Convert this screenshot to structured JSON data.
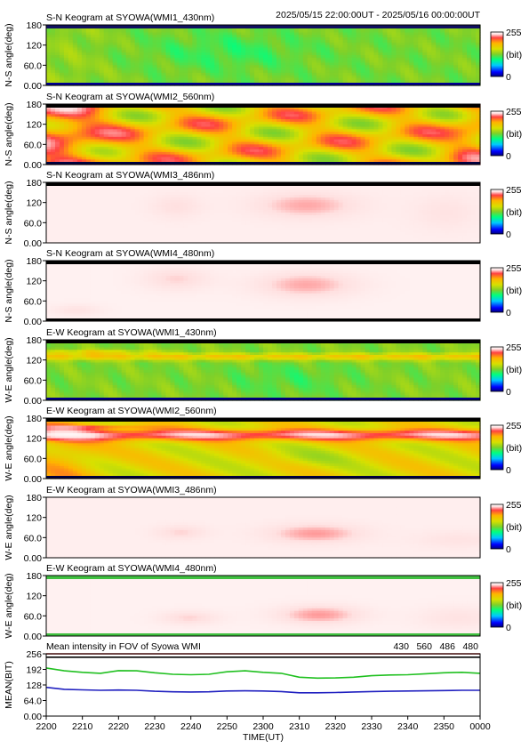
{
  "header": {
    "range": "2025/05/15 22:00:00UT - 2025/05/16 00:00:00UT"
  },
  "chart_data": {
    "type": "heatmap",
    "panels": [
      {
        "title": "S-N Keogram at SYOWA(WMI1_430nm)",
        "ylabel": "N-S angle(deg)",
        "yticks": [
          "180",
          "120",
          "60.0",
          "0.00"
        ],
        "ylim": [
          0,
          180
        ],
        "colorbar": {
          "max": "255",
          "unit": "(bit)",
          "min": "0"
        },
        "preset": "sn430"
      },
      {
        "title": "S-N Keogram at SYOWA(WMI2_560nm)",
        "ylabel": "N-S angle(deg)",
        "yticks": [
          "180",
          "120",
          "60.0",
          "0.00"
        ],
        "ylim": [
          0,
          180
        ],
        "colorbar": {
          "max": "255",
          "unit": "(bit)",
          "min": "0"
        },
        "preset": "sn560"
      },
      {
        "title": "S-N Keogram at SYOWA(WMI3_486nm)",
        "ylabel": "N-S angle(deg)",
        "yticks": [
          "180",
          "120",
          "60.0",
          "0.00"
        ],
        "ylim": [
          0,
          180
        ],
        "colorbar": {
          "max": "255",
          "unit": "(bit)",
          "min": "0"
        },
        "preset": "sn486"
      },
      {
        "title": "S-N Keogram at SYOWA(WMI4_480nm)",
        "ylabel": "N-S angle(deg)",
        "yticks": [
          "180",
          "120",
          "60.0",
          "0.00"
        ],
        "ylim": [
          0,
          180
        ],
        "colorbar": {
          "max": "255",
          "unit": "(bit)",
          "min": "0"
        },
        "preset": "sn480"
      },
      {
        "title": "E-W Keogram at SYOWA(WMI1_430nm)",
        "ylabel": "W-E angle(deg)",
        "yticks": [
          "180",
          "120",
          "60.0",
          "0.00"
        ],
        "ylim": [
          0,
          180
        ],
        "colorbar": {
          "max": "255",
          "unit": "(bit)",
          "min": "0"
        },
        "preset": "ew430"
      },
      {
        "title": "E-W Keogram at SYOWA(WMI2_560nm)",
        "ylabel": "W-E angle(deg)",
        "yticks": [
          "180",
          "120",
          "60.0",
          "0.00"
        ],
        "ylim": [
          0,
          180
        ],
        "colorbar": {
          "max": "255",
          "unit": "(bit)",
          "min": "0"
        },
        "preset": "ew560"
      },
      {
        "title": "E-W Keogram at SYOWA(WMI3_486nm)",
        "ylabel": "W-E angle(deg)",
        "yticks": [
          "180",
          "120",
          "60.0",
          "0.00"
        ],
        "ylim": [
          0,
          180
        ],
        "colorbar": {
          "max": "255",
          "unit": "(bit)",
          "min": "0"
        },
        "preset": "ew486"
      },
      {
        "title": "E-W Keogram at SYOWA(WMI4_480nm)",
        "ylabel": "W-E angle(deg)",
        "yticks": [
          "180",
          "120",
          "60.0",
          "0.00"
        ],
        "ylim": [
          0,
          180
        ],
        "colorbar": {
          "max": "255",
          "unit": "(bit)",
          "min": "0"
        },
        "preset": "ew480"
      }
    ],
    "colormap": [
      "#000080",
      "#0000ff",
      "#00c8ff",
      "#00ff80",
      "#7ed02a",
      "#d8e000",
      "#ffb400",
      "#ff4040",
      "#ffe0e0",
      "#ffffff"
    ],
    "mean": {
      "type": "line",
      "title": "Mean intensity in FOV of Syowa WMI",
      "ylabel": "MEAN(BIT)",
      "xlabel": "TIME(UT)",
      "ylim": [
        0,
        256
      ],
      "yticks": [
        "256",
        "192",
        "128",
        "64.0",
        "0.00"
      ],
      "x": [
        2200,
        2205,
        2210,
        2215,
        2220,
        2225,
        2230,
        2235,
        2240,
        2245,
        2250,
        2255,
        2260,
        2305,
        2310,
        2315,
        2320,
        2325,
        2330,
        2335,
        2340,
        2345,
        2350,
        2355,
        2360
      ],
      "series": [
        {
          "name": "430",
          "color": "#2020c0",
          "values": [
            118,
            110,
            108,
            106,
            107,
            106,
            102,
            100,
            99,
            100,
            103,
            104,
            103,
            101,
            96,
            96,
            97,
            99,
            101,
            102,
            103,
            104,
            105,
            106,
            106
          ]
        },
        {
          "name": "560",
          "color": "#20c020",
          "values": [
            198,
            186,
            180,
            176,
            187,
            186,
            178,
            172,
            170,
            172,
            182,
            186,
            180,
            176,
            160,
            156,
            157,
            160,
            166,
            169,
            170,
            174,
            178,
            180,
            176
          ]
        },
        {
          "name": "486",
          "color": "#c02020",
          "values": [
            256,
            256,
            256,
            256,
            256,
            256,
            256,
            256,
            256,
            256,
            256,
            256,
            256,
            256,
            256,
            256,
            256,
            256,
            256,
            256,
            256,
            256,
            256,
            256,
            256
          ]
        },
        {
          "name": "480",
          "color": "#000000",
          "values": [
            242,
            242,
            242,
            242,
            242,
            242,
            242,
            242,
            242,
            242,
            242,
            242,
            242,
            242,
            242,
            242,
            242,
            242,
            242,
            242,
            242,
            242,
            242,
            242,
            242
          ]
        }
      ]
    },
    "xticks": [
      "2200",
      "2210",
      "2220",
      "2230",
      "2240",
      "2250",
      "2300",
      "2310",
      "2320",
      "2330",
      "2340",
      "2350",
      "0000"
    ],
    "xlim": [
      "2200",
      "0000"
    ]
  }
}
